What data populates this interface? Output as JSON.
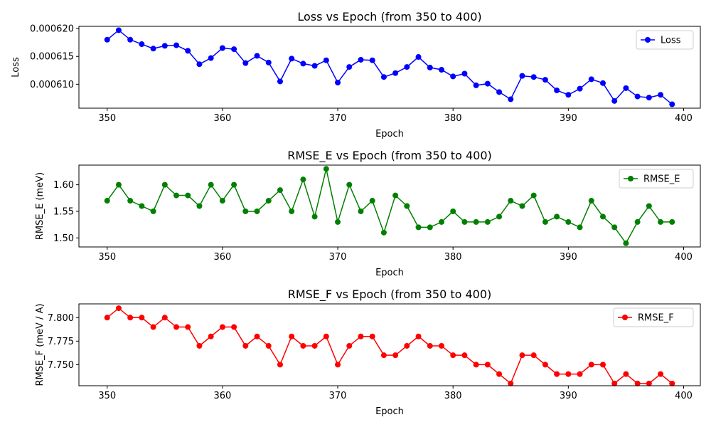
{
  "chart_data": [
    {
      "type": "line",
      "title": "Loss vs Epoch (from 350 to 400)",
      "xlabel": "Epoch",
      "ylabel": "Loss",
      "color": "#0000ff",
      "legend_placement": "top-right",
      "x": [
        350,
        351,
        352,
        353,
        354,
        355,
        356,
        357,
        358,
        359,
        360,
        361,
        362,
        363,
        364,
        365,
        366,
        367,
        368,
        369,
        370,
        371,
        372,
        373,
        374,
        375,
        376,
        377,
        378,
        379,
        380,
        381,
        382,
        383,
        384,
        385,
        386,
        387,
        388,
        389,
        390,
        391,
        392,
        393,
        394,
        395,
        396,
        397,
        398,
        399
      ],
      "series": [
        {
          "name": "Loss",
          "values": [
            0.000618,
            0.0006197,
            0.000618,
            0.0006172,
            0.0006164,
            0.0006169,
            0.000617,
            0.000616,
            0.0006136,
            0.0006147,
            0.0006165,
            0.0006163,
            0.0006138,
            0.0006151,
            0.0006139,
            0.0006105,
            0.0006146,
            0.0006137,
            0.0006133,
            0.0006143,
            0.0006103,
            0.0006131,
            0.0006144,
            0.0006143,
            0.0006113,
            0.000612,
            0.0006131,
            0.0006149,
            0.000613,
            0.0006126,
            0.0006114,
            0.0006119,
            0.0006098,
            0.0006101,
            0.0006086,
            0.0006073,
            0.0006115,
            0.0006113,
            0.0006108,
            0.0006089,
            0.0006081,
            0.0006092,
            0.0006109,
            0.0006102,
            0.000607,
            0.0006093,
            0.0006078,
            0.0006076,
            0.0006081,
            0.0006064
          ]
        }
      ],
      "xlim": [
        347.55,
        401.45
      ],
      "ylim": [
        0.0006057,
        0.0006204
      ],
      "xticks": [
        350,
        360,
        370,
        380,
        390,
        400
      ],
      "xtick_labels": [
        "350",
        "360",
        "370",
        "380",
        "390",
        "400"
      ],
      "yticks": [
        0.00061,
        0.000615,
        0.00062
      ],
      "ytick_labels": [
        "0.000610",
        "0.000615",
        "0.000620"
      ],
      "grid": false
    },
    {
      "type": "line",
      "title": "RMSE_E vs Epoch (from 350 to 400)",
      "xlabel": "Epoch",
      "ylabel": "RMSE_E (meV)",
      "color": "#008000",
      "legend_placement": "top-right",
      "x": [
        350,
        351,
        352,
        353,
        354,
        355,
        356,
        357,
        358,
        359,
        360,
        361,
        362,
        363,
        364,
        365,
        366,
        367,
        368,
        369,
        370,
        371,
        372,
        373,
        374,
        375,
        376,
        377,
        378,
        379,
        380,
        381,
        382,
        383,
        384,
        385,
        386,
        387,
        388,
        389,
        390,
        391,
        392,
        393,
        394,
        395,
        396,
        397,
        398,
        399
      ],
      "series": [
        {
          "name": "RMSE_E",
          "values": [
            1.57,
            1.6,
            1.57,
            1.56,
            1.55,
            1.6,
            1.58,
            1.58,
            1.56,
            1.6,
            1.57,
            1.6,
            1.55,
            1.55,
            1.57,
            1.59,
            1.55,
            1.61,
            1.54,
            1.63,
            1.53,
            1.6,
            1.55,
            1.57,
            1.51,
            1.58,
            1.56,
            1.52,
            1.52,
            1.53,
            1.55,
            1.53,
            1.53,
            1.53,
            1.54,
            1.57,
            1.56,
            1.58,
            1.53,
            1.54,
            1.53,
            1.52,
            1.57,
            1.54,
            1.52,
            1.49,
            1.53,
            1.56,
            1.53,
            1.53
          ]
        }
      ],
      "xlim": [
        347.55,
        401.45
      ],
      "ylim": [
        1.483,
        1.637
      ],
      "xticks": [
        350,
        360,
        370,
        380,
        390,
        400
      ],
      "xtick_labels": [
        "350",
        "360",
        "370",
        "380",
        "390",
        "400"
      ],
      "yticks": [
        1.5,
        1.55,
        1.6
      ],
      "ytick_labels": [
        "1.50",
        "1.55",
        "1.60"
      ],
      "grid": false
    },
    {
      "type": "line",
      "title": "RMSE_F vs Epoch (from 350 to 400)",
      "xlabel": "Epoch",
      "ylabel": "RMSE_F (meV / A)",
      "color": "#ff0000",
      "legend_placement": "top-right",
      "x": [
        350,
        351,
        352,
        353,
        354,
        355,
        356,
        357,
        358,
        359,
        360,
        361,
        362,
        363,
        364,
        365,
        366,
        367,
        368,
        369,
        370,
        371,
        372,
        373,
        374,
        375,
        376,
        377,
        378,
        379,
        380,
        381,
        382,
        383,
        384,
        385,
        386,
        387,
        388,
        389,
        390,
        391,
        392,
        393,
        394,
        395,
        396,
        397,
        398,
        399
      ],
      "series": [
        {
          "name": "RMSE_F",
          "values": [
            7.8,
            7.81,
            7.8,
            7.8,
            7.79,
            7.8,
            7.79,
            7.79,
            7.77,
            7.78,
            7.79,
            7.79,
            7.77,
            7.78,
            7.77,
            7.75,
            7.78,
            7.77,
            7.77,
            7.78,
            7.75,
            7.77,
            7.78,
            7.78,
            7.76,
            7.76,
            7.77,
            7.78,
            7.77,
            7.77,
            7.76,
            7.76,
            7.75,
            7.75,
            7.74,
            7.73,
            7.76,
            7.76,
            7.75,
            7.74,
            7.74,
            7.74,
            7.75,
            7.75,
            7.73,
            7.74,
            7.73,
            7.73,
            7.74,
            7.73
          ]
        }
      ],
      "xlim": [
        347.55,
        401.45
      ],
      "ylim": [
        7.7276,
        7.8146
      ],
      "xticks": [
        350,
        360,
        370,
        380,
        390,
        400
      ],
      "xtick_labels": [
        "350",
        "360",
        "370",
        "380",
        "390",
        "400"
      ],
      "yticks": [
        7.75,
        7.775,
        7.8
      ],
      "ytick_labels": [
        "7.750",
        "7.775",
        "7.800"
      ],
      "grid": false
    }
  ]
}
